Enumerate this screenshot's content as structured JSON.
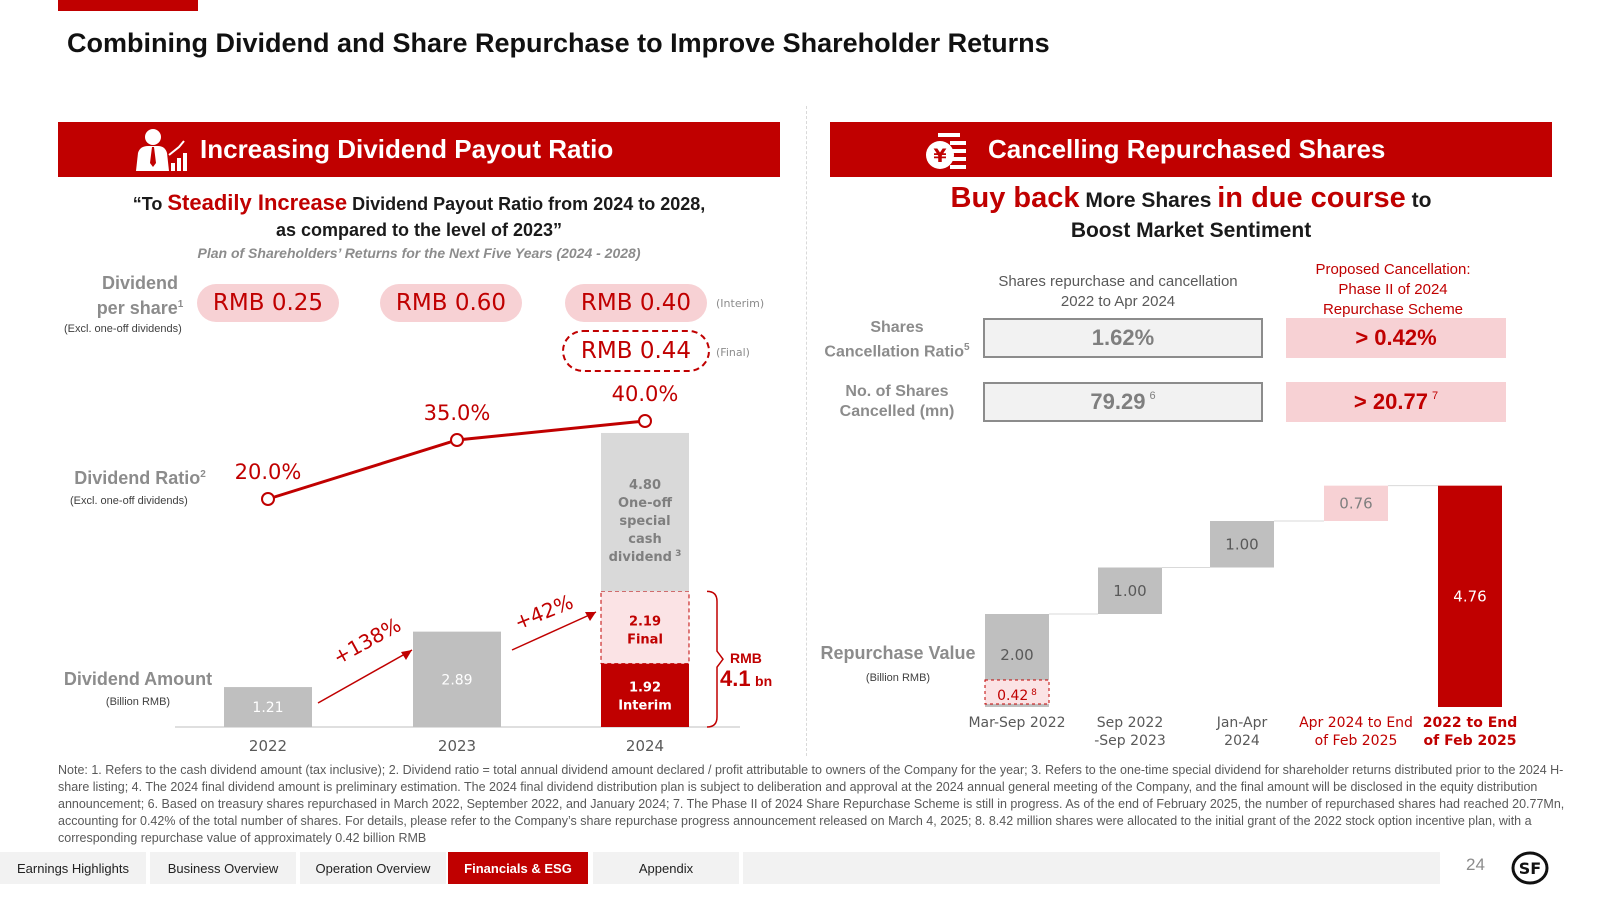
{
  "title": "Combining Dividend and Share Repurchase to Improve Shareholder Returns",
  "colors": {
    "accent": "#c00000",
    "pink": "#f7d1d4",
    "grey_bar": "#bfbfbf"
  },
  "left": {
    "header": "Increasing Dividend Payout Ratio",
    "header_icon": "person-growth-chart-icon",
    "quote_open": "“To ",
    "quote_highlight": "Steadily Increase",
    "quote_rest": " Dividend Payout Ratio from 2024 to 2028,",
    "quote_line2": "as compared to the level of 2023”",
    "plan": "Plan of Shareholders’ Returns for the Next Five Years (2024 - 2028)",
    "dps_label_1": "Dividend",
    "dps_label_2": "per share",
    "dps_sup": "1",
    "dps_sub": "(Excl. one-off dividends)",
    "dps_values": [
      "RMB 0.25",
      "RMB 0.60",
      "RMB 0.40"
    ],
    "dps_final": "RMB 0.44",
    "interim_tag": "(Interim)",
    "final_tag": "(Final)",
    "ratio_label": "Dividend Ratio",
    "ratio_sup": "2",
    "ratio_sub": "(Excl. one-off dividends)",
    "amount_label": "Dividend Amount",
    "amount_sub": "(Billion RMB)",
    "growth_1": "+138%",
    "growth_2": "+42%",
    "rmb_label": "RMB",
    "total_value": "4.1",
    "total_unit": "bn"
  },
  "right": {
    "header": "Cancelling Repurchased Shares",
    "header_icon": "yuan-coin-list-icon",
    "headline_a": "Buy back",
    "headline_b": " More Shares ",
    "headline_c": "in due course",
    "headline_d": " to",
    "headline_line2": "Boost Market Sentiment",
    "col1_title_1": "Shares repurchase and cancellation",
    "col1_title_2": "2022 to Apr 2024",
    "col2_title_1": "Proposed Cancellation:",
    "col2_title_2": "Phase II of 2024",
    "col2_title_3": "Repurchase Scheme",
    "row1_label_1": "Shares",
    "row1_label_2": "Cancellation Ratio",
    "row1_sup": "5",
    "row1_val1": "1.62%",
    "row1_val2": "> 0.42%",
    "row2_label_1": "No. of Shares",
    "row2_label_2": "Cancelled (mn)",
    "row2_val1": "79.29",
    "row2_val1_sup": "6",
    "row2_val2": "> 20.77",
    "row2_val2_sup": "7",
    "repurchase_label": "Repurchase Value",
    "repurchase_sub": "(Billion RMB)"
  },
  "chart_data": [
    {
      "type": "bar",
      "categories": [
        "2022",
        "2023",
        "2024"
      ],
      "series": [
        {
          "name": "Interim",
          "values": [
            1.21,
            2.89,
            1.92
          ]
        },
        {
          "name": "Final",
          "values": [
            null,
            null,
            2.19
          ]
        },
        {
          "name": "One-off special cash dividend",
          "values": [
            null,
            null,
            4.8
          ]
        }
      ],
      "line": {
        "values_pct": [
          20.0,
          35.0,
          40.0
        ]
      },
      "bar_labels": {
        "2024_interim": [
          "1.92",
          "Interim"
        ],
        "2024_final": [
          "2.19",
          "Final"
        ],
        "2024_special": [
          "4.80",
          "One-off",
          "special",
          "cash",
          "dividend"
        ],
        "special_sup": "3"
      },
      "line_labels": [
        "20.0%",
        "35.0%",
        "40.0%"
      ],
      "value_labels": [
        "1.21",
        "2.89"
      ]
    },
    {
      "type": "bar",
      "subtype": "waterfall",
      "categories": [
        "Mar-Sep 2022",
        "Sep 2022 -Sep 2023",
        "Jan-Apr 2024",
        "Apr 2024 to End of Feb 2025",
        "2022 to End of Feb 2025"
      ],
      "category_lines": [
        [
          "Mar-Sep 2022"
        ],
        [
          "Sep 2022",
          "-Sep 2023"
        ],
        [
          "Jan-Apr",
          "2024"
        ],
        [
          "Apr 2024 to End",
          "of Feb 2025"
        ],
        [
          "2022 to End",
          "of Feb 2025"
        ]
      ],
      "values": [
        2.0,
        1.0,
        1.0,
        0.76,
        4.76
      ],
      "value_labels": [
        "2.00",
        "1.00",
        "1.00",
        "0.76",
        "4.76"
      ],
      "extra": {
        "label": "0.42",
        "sup": "8",
        "value": 0.42
      }
    }
  ],
  "note": "Note: 1. Refers to the cash dividend amount (tax inclusive); 2. Dividend ratio = total annual dividend amount declared / profit attributable to owners of the Company for the year; 3. Refers to the one-time special dividend for shareholder returns distributed prior to the 2024 H-share listing; 4. The 2024 final dividend amount is preliminary estimation. The 2024 final dividend distribution plan is subject to deliberation and approval at the 2024 annual general meeting of the Company, and the final amount will be disclosed in the equity distribution announcement; 6. Based on treasury shares repurchased in March 2022, September 2022, and January 2024; 7. The Phase II of 2024 Share Repurchase Scheme is still in progress. As of the end of February 2025, the number of repurchased shares had reached 20.77Mn, accounting for 0.42% of the total number of shares. For details, please refer to the Company’s share repurchase progress announcement released on March 4, 2025; 8. 8.42 million shares were allocated to the initial grant of the 2022 stock option incentive plan, with a corresponding repurchase value of approximately 0.42 billion RMB",
  "nav": [
    "Earnings Highlights",
    "Business Overview",
    "Operation Overview",
    "Financials & ESG",
    "Appendix"
  ],
  "nav_active": "Financials & ESG",
  "page_number": "24",
  "logo_text": "SF"
}
